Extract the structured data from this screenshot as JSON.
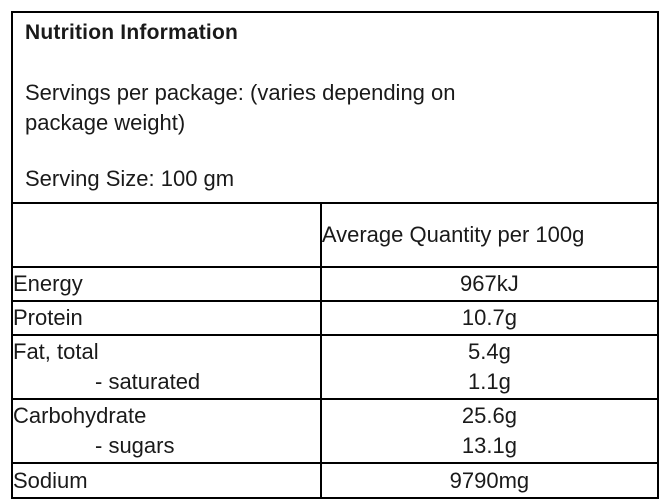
{
  "header": {
    "title": "Nutrition Information",
    "servings_per_package": "Servings per package: (varies depending on package weight)",
    "serving_size": "Serving Size: 100 gm"
  },
  "table": {
    "columns": [
      "",
      "Average Quantity per 100g"
    ],
    "rows": [
      {
        "label": "Energy",
        "value": "967kJ"
      },
      {
        "label": "Protein",
        "value": "10.7g"
      },
      {
        "label": "Fat, total",
        "value": "5.4g",
        "sub_label": "- saturated",
        "sub_value": "1.1g"
      },
      {
        "label": "Carbohydrate",
        "value": "25.6g",
        "sub_label": "- sugars",
        "sub_value": "13.1g"
      },
      {
        "label": "Sodium",
        "value": "9790mg"
      }
    ]
  },
  "colors": {
    "border": "#000000",
    "text": "#1a1a1a",
    "background": "#ffffff"
  }
}
